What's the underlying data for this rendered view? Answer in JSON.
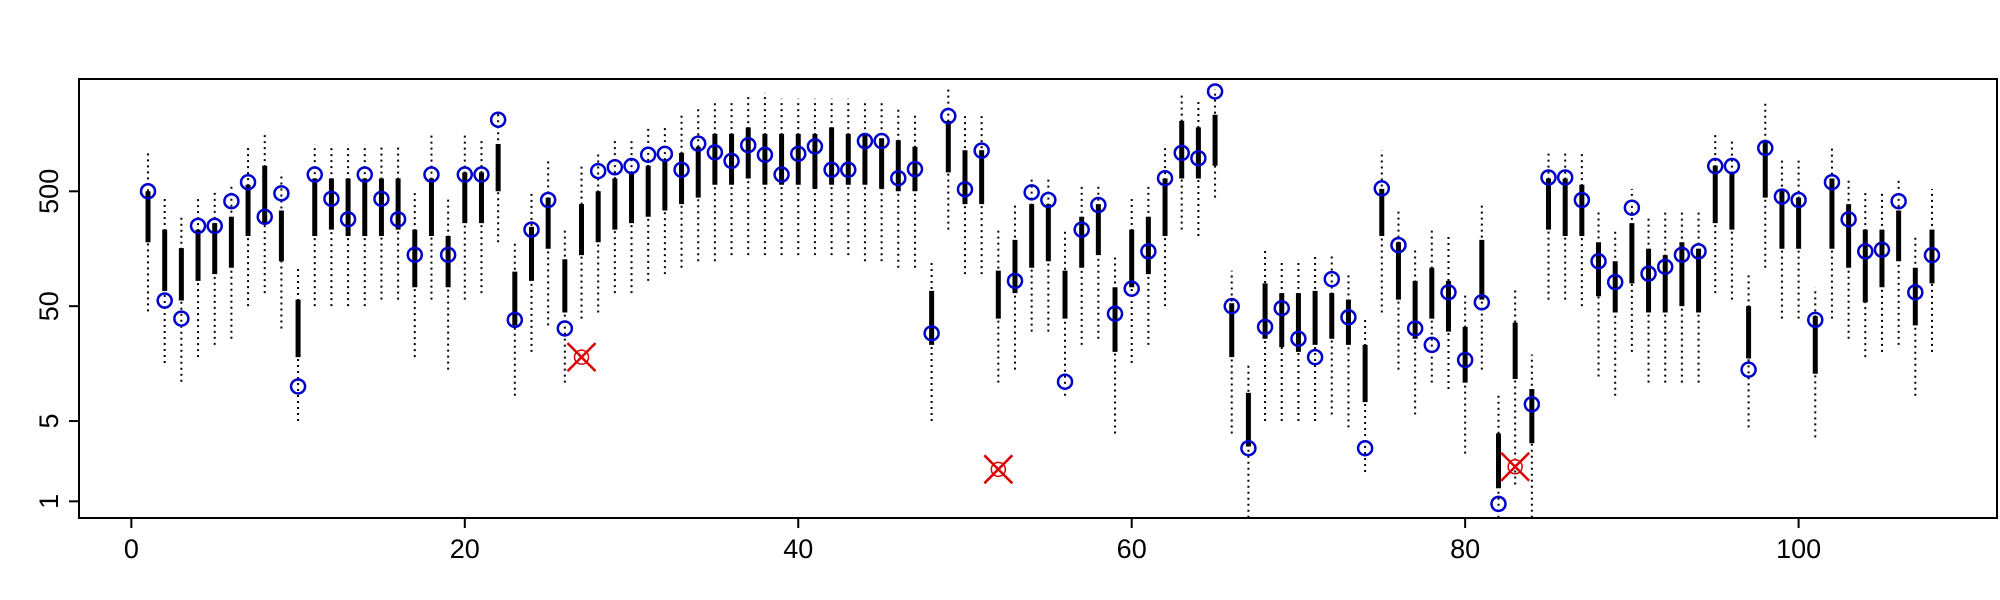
{
  "chart_data": {
    "type": "interval",
    "log_y": true,
    "x": [
      1,
      2,
      3,
      4,
      5,
      6,
      7,
      8,
      9,
      10,
      11,
      12,
      13,
      14,
      15,
      16,
      17,
      18,
      19,
      20,
      21,
      22,
      23,
      24,
      25,
      26,
      27,
      28,
      29,
      30,
      31,
      32,
      33,
      34,
      35,
      36,
      37,
      38,
      39,
      40,
      41,
      42,
      43,
      44,
      45,
      46,
      47,
      48,
      49,
      50,
      51,
      52,
      53,
      54,
      55,
      56,
      57,
      58,
      59,
      60,
      61,
      62,
      63,
      64,
      65,
      66,
      67,
      68,
      69,
      70,
      71,
      72,
      73,
      74,
      75,
      76,
      77,
      78,
      79,
      80,
      81,
      82,
      83,
      84,
      85,
      86,
      87,
      88,
      89,
      90,
      91,
      92,
      93,
      94,
      95,
      96,
      97,
      98,
      99,
      100,
      101,
      102,
      103,
      104,
      105,
      106,
      107,
      108
    ],
    "observed": [
      500,
      56,
      39,
      250,
      250,
      410,
      600,
      300,
      480,
      10,
      700,
      430,
      285,
      700,
      430,
      285,
      140,
      700,
      140,
      700,
      700,
      2100,
      38,
      232,
      420,
      32,
      18,
      750,
      810,
      830,
      1040,
      1060,
      770,
      1300,
      1090,
      920,
      1260,
      1040,
      700,
      1060,
      1230,
      770,
      770,
      1370,
      1370,
      650,
      780,
      29,
      2260,
      520,
      1130,
      1.9,
      83,
      490,
      420,
      11,
      232,
      380,
      43,
      71,
      150,
      650,
      1080,
      970,
      3700,
      50,
      2.9,
      33,
      48,
      26,
      18,
      86,
      40,
      2.9,
      530,
      170,
      32,
      23,
      66,
      17,
      54,
      0.95,
      2.0,
      7,
      660,
      660,
      420,
      123,
      81,
      360,
      96,
      110,
      140,
      150,
      830,
      830,
      14,
      1190,
      450,
      420,
      38,
      600,
      285,
      150,
      155,
      410,
      66,
      139
    ],
    "inner_low": [
      180,
      68,
      56,
      83,
      95,
      108,
      204,
      264,
      123,
      18,
      204,
      232,
      204,
      204,
      204,
      232,
      73,
      204,
      73,
      264,
      264,
      500,
      34,
      83,
      158,
      44,
      139,
      180,
      232,
      264,
      300,
      340,
      387,
      440,
      570,
      570,
      646,
      570,
      570,
      570,
      525,
      570,
      570,
      570,
      525,
      500,
      500,
      23,
      730,
      387,
      387,
      39,
      65,
      108,
      123,
      39,
      108,
      139,
      20,
      73,
      95,
      204,
      646,
      646,
      834,
      18,
      3.0,
      26,
      22,
      20,
      23,
      26,
      23,
      7.3,
      204,
      57,
      26,
      39,
      30,
      10.8,
      57,
      1.3,
      11.6,
      3.2,
      232,
      204,
      204,
      61,
      44,
      79,
      44,
      44,
      50,
      44,
      264,
      232,
      17.5,
      440,
      158,
      158,
      12.9,
      158,
      108,
      54,
      73,
      123,
      34,
      79
    ],
    "inner_high": [
      500,
      232,
      160,
      232,
      264,
      300,
      570,
      834,
      340,
      57,
      646,
      646,
      646,
      646,
      646,
      646,
      232,
      646,
      204,
      730,
      730,
      1290,
      100,
      245,
      440,
      128,
      387,
      500,
      646,
      730,
      834,
      950,
      1080,
      1220,
      1580,
      1580,
      1800,
      1580,
      1580,
      1580,
      1580,
      1800,
      1580,
      1580,
      1450,
      1390,
      1220,
      68,
      2050,
      1140,
      1140,
      102,
      189,
      387,
      387,
      102,
      300,
      387,
      73,
      232,
      300,
      646,
      2050,
      1800,
      2320,
      53,
      8.8,
      79,
      65,
      65,
      68,
      65,
      57,
      23,
      525,
      180,
      83,
      108,
      83,
      33,
      189,
      3.9,
      36,
      9.5,
      646,
      646,
      570,
      180,
      123,
      264,
      158,
      139,
      180,
      158,
      834,
      730,
      50,
      1390,
      500,
      440,
      41,
      646,
      387,
      232,
      232,
      340,
      108,
      232
    ],
    "outer_low": [
      45,
      16,
      11,
      18,
      23,
      26,
      50,
      65,
      32,
      5,
      50,
      50,
      50,
      50,
      57,
      57,
      18,
      57,
      14,
      57,
      65,
      180,
      8.3,
      20,
      34,
      10.8,
      39,
      44,
      65,
      65,
      83,
      95,
      108,
      123,
      123,
      139,
      139,
      139,
      139,
      139,
      139,
      139,
      139,
      123,
      123,
      108,
      108,
      5,
      232,
      95,
      95,
      10.8,
      14,
      30,
      30,
      8.3,
      23,
      26,
      3.9,
      16,
      23,
      50,
      232,
      204,
      440,
      3.9,
      0.72,
      5,
      5,
      5,
      5,
      5.7,
      4.4,
      1.8,
      44,
      14,
      5.7,
      10.8,
      9.5,
      2.6,
      14,
      0.72,
      1.4,
      0.72,
      57,
      57,
      50,
      12.2,
      8.3,
      20,
      10.8,
      10.8,
      10.8,
      10.8,
      65,
      57,
      4.4,
      108,
      39,
      39,
      3.6,
      39,
      26,
      18,
      20,
      23,
      8.3,
      20
    ],
    "outer_high": [
      1080,
      440,
      300,
      440,
      500,
      570,
      1220,
      1580,
      730,
      108,
      1290,
      1290,
      1290,
      1290,
      1290,
      1290,
      500,
      1580,
      440,
      1580,
      1390,
      2400,
      180,
      500,
      950,
      245,
      834,
      1080,
      1390,
      1390,
      1800,
      1900,
      2320,
      2650,
      3000,
      3000,
      3400,
      3600,
      3200,
      3200,
      3200,
      3200,
      3200,
      3000,
      3000,
      2650,
      2320,
      123,
      3870,
      2320,
      2320,
      232,
      387,
      646,
      646,
      232,
      570,
      570,
      139,
      440,
      570,
      1290,
      3600,
      3200,
      3870,
      102,
      16,
      158,
      123,
      123,
      139,
      139,
      95,
      39,
      1140,
      340,
      158,
      232,
      204,
      65,
      387,
      8.3,
      73,
      19,
      1140,
      1140,
      1140,
      340,
      232,
      525,
      300,
      340,
      340,
      340,
      1580,
      1390,
      95,
      3000,
      950,
      950,
      73,
      1220,
      646,
      500,
      500,
      646,
      204,
      525
    ],
    "flagged_x": [
      27,
      52,
      83
    ],
    "xlim": [
      -3.14,
      111.9
    ],
    "ylim": [
      0.716,
      4750
    ],
    "xticks": [
      0,
      20,
      40,
      60,
      80,
      100
    ],
    "yticks": [
      1,
      5,
      50,
      500
    ],
    "colors": {
      "point": "#0000cc",
      "flag": "#dd0000",
      "interval": "#000000"
    }
  }
}
